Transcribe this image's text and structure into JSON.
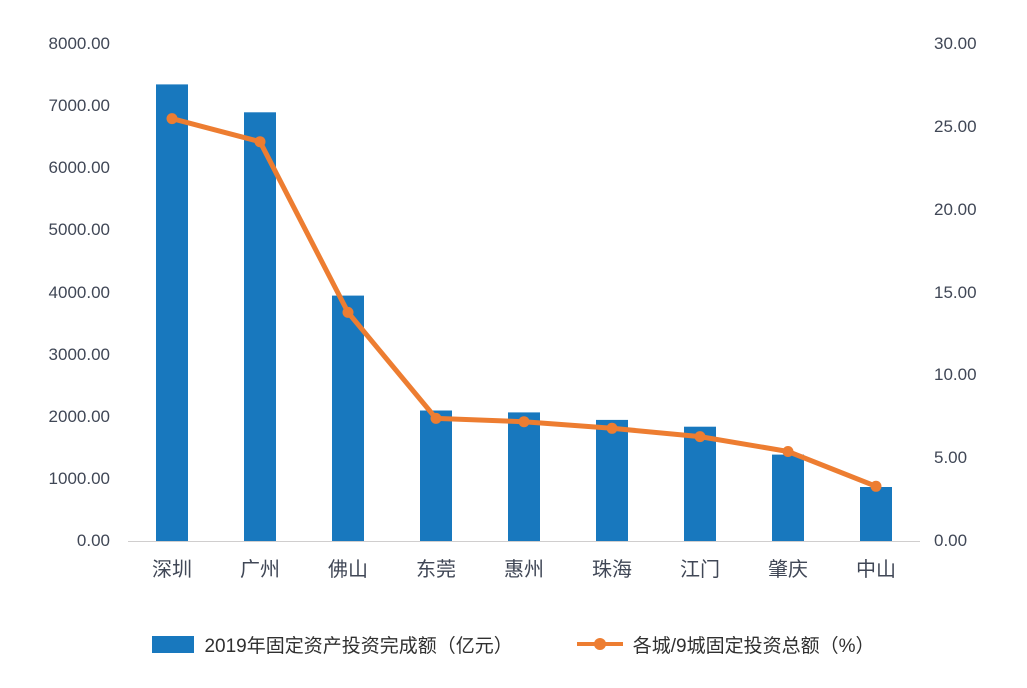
{
  "chart_data": {
    "type": "bar",
    "subtype": "bar-line-combo",
    "title": "",
    "xlabel": "",
    "ylabel": "",
    "grid": false,
    "legend_position": "bottom",
    "categories": [
      "深圳",
      "广州",
      "佛山",
      "东莞",
      "惠州",
      "珠海",
      "江门",
      "肇庆",
      "中山"
    ],
    "series": [
      {
        "name": "2019年固定资产投资完成额（亿元）",
        "type": "bar",
        "axis": "left",
        "color": "#1878BE",
        "values": [
          7350,
          6900,
          3950,
          2100,
          2070,
          1950,
          1840,
          1390,
          870
        ]
      },
      {
        "name": "各城/9城固定投资总额（%）",
        "type": "line",
        "axis": "right",
        "color": "#ED7D31",
        "values": [
          25.5,
          24.1,
          13.8,
          7.4,
          7.2,
          6.8,
          6.3,
          5.4,
          3.3
        ]
      }
    ],
    "left_axis": {
      "min": 0,
      "max": 8000,
      "step": 1000,
      "tick_labels": [
        "0.00",
        "1000.00",
        "2000.00",
        "3000.00",
        "4000.00",
        "5000.00",
        "6000.00",
        "7000.00",
        "8000.00"
      ]
    },
    "right_axis": {
      "min": 0,
      "max": 30,
      "step": 5,
      "tick_labels": [
        "0.00",
        "5.00",
        "10.00",
        "15.00",
        "20.00",
        "25.00",
        "30.00"
      ]
    },
    "colors": {
      "bar": "#1878BE",
      "line": "#ED7D31",
      "axis_text": "#404756",
      "axis_line": "#D0CECE"
    }
  }
}
